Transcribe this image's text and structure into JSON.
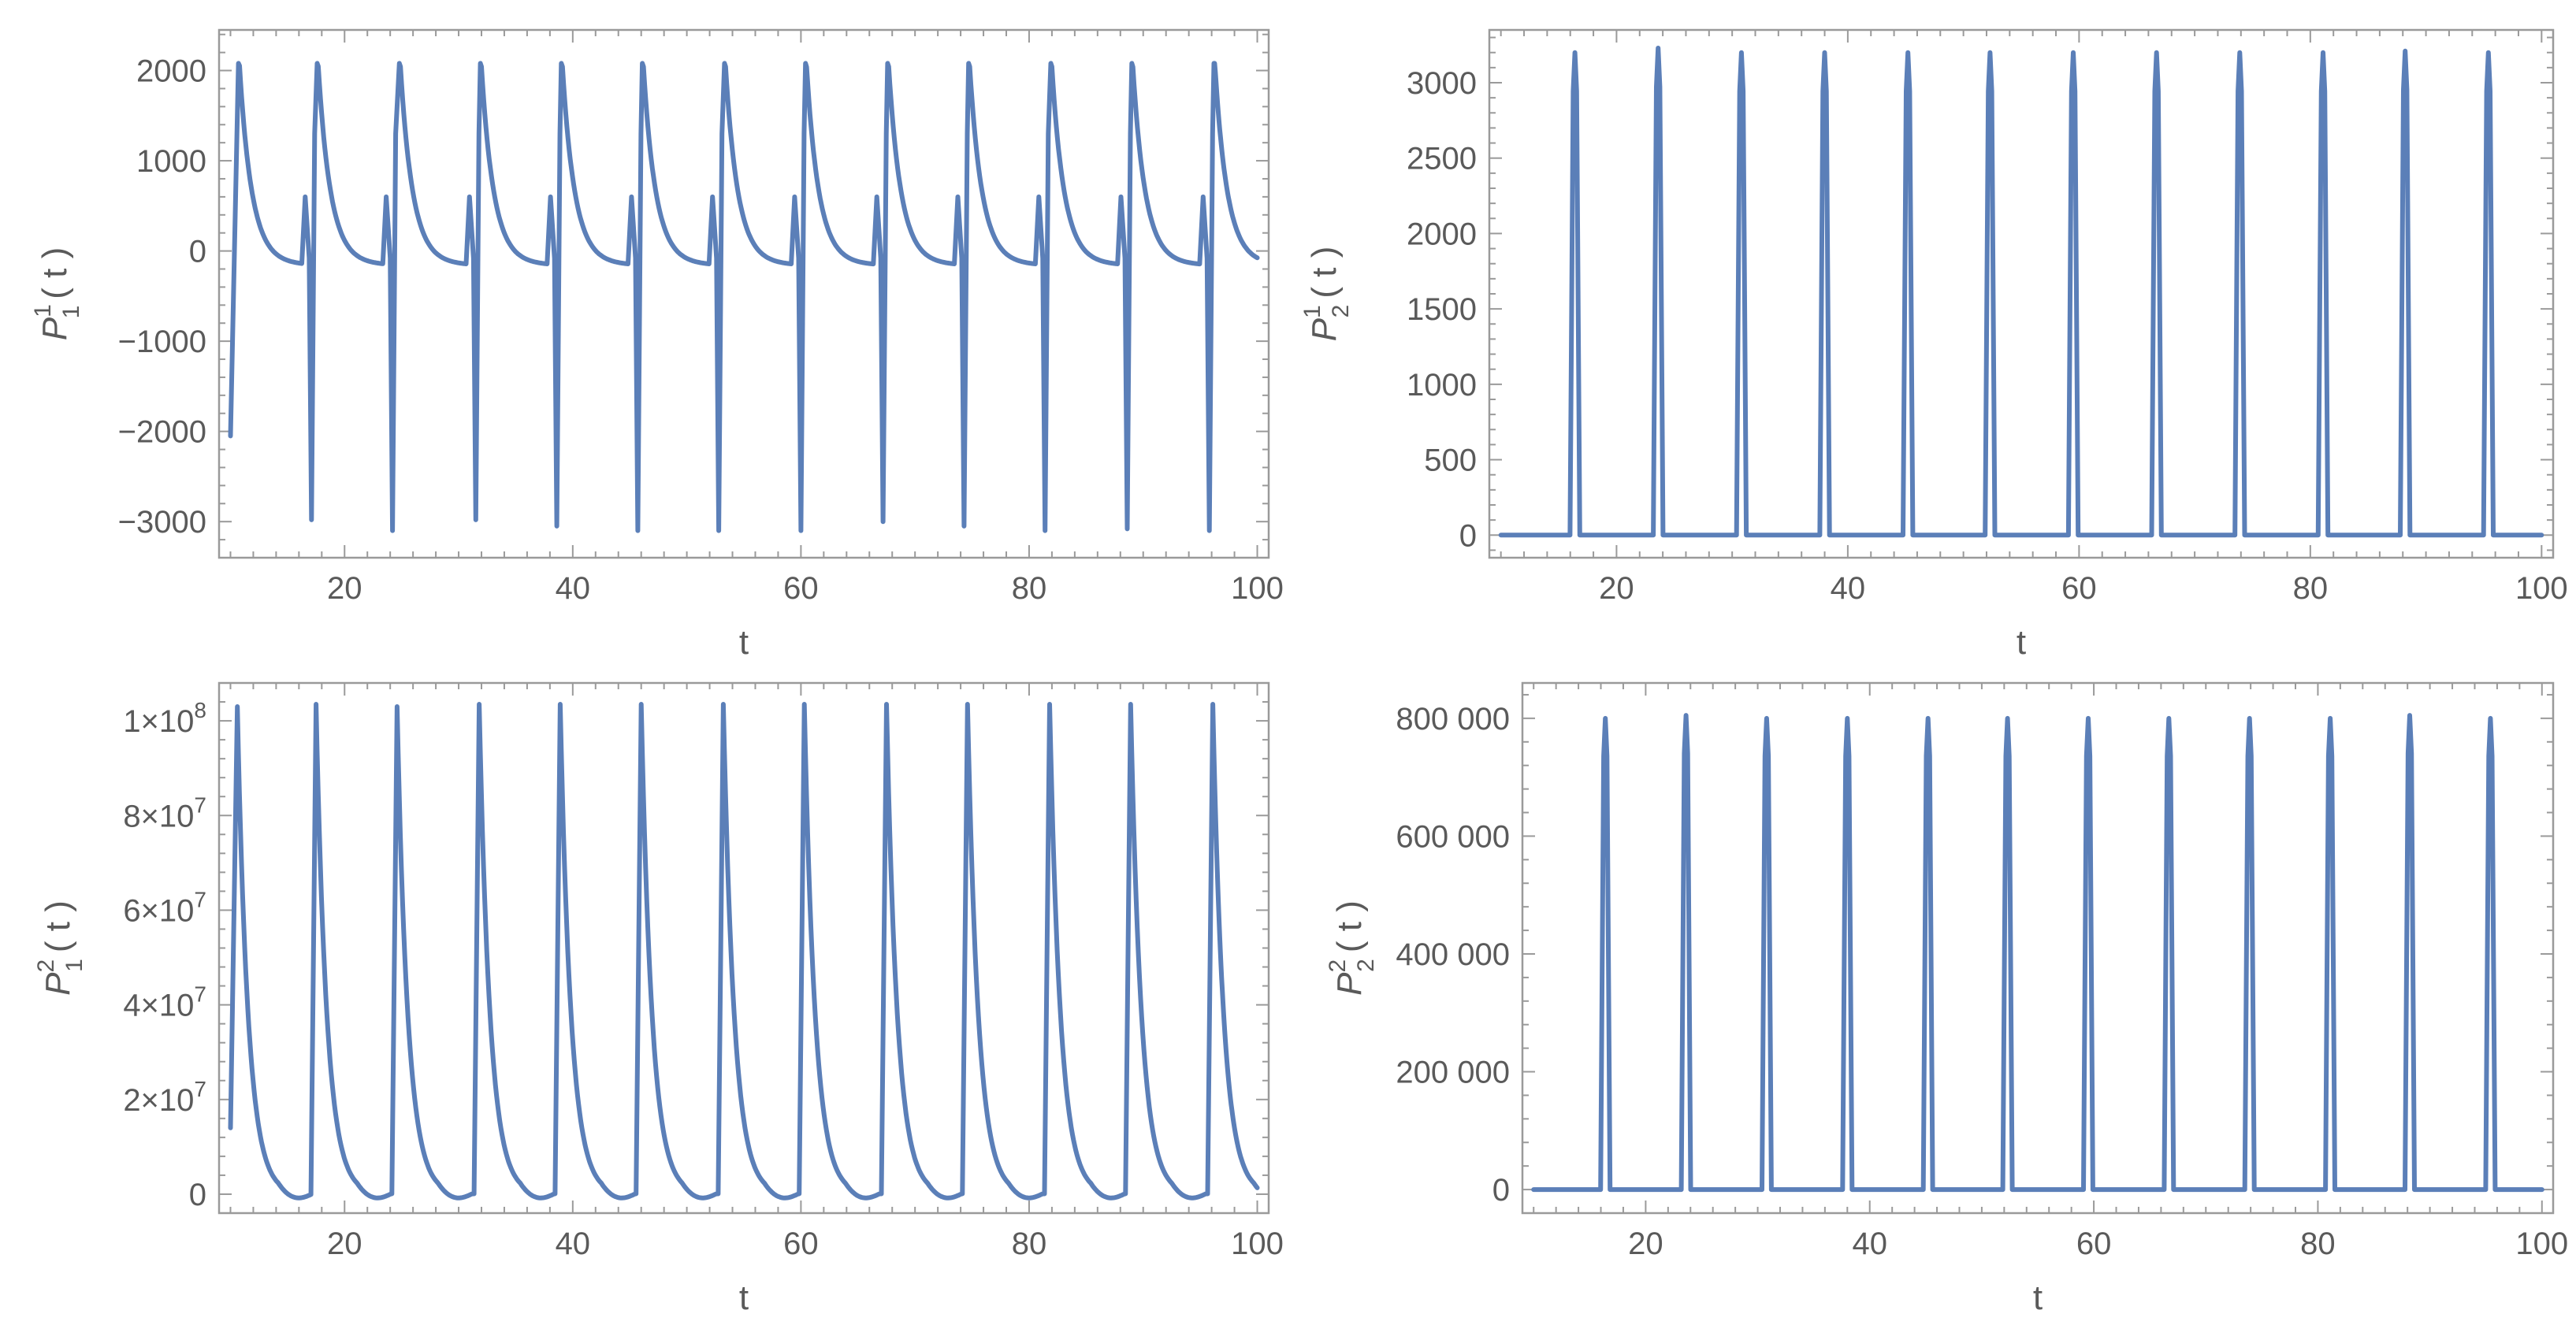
{
  "chart_data": [
    {
      "id": "p1_1",
      "type": "line",
      "xlabel": "t",
      "ylabel": {
        "base": "P",
        "sup": "1",
        "sub": "1",
        "arg": "( t )"
      },
      "xlim": [
        9,
        101
      ],
      "ylim": [
        -3400,
        2450
      ],
      "xticks": [
        20,
        40,
        60,
        80,
        100
      ],
      "xtick_labels": [
        "20",
        "40",
        "60",
        "80",
        "100"
      ],
      "yticks": [
        -3000,
        -2000,
        -1000,
        0,
        1000,
        2000
      ],
      "ytick_labels": [
        "−3000",
        "−2000",
        "−1000",
        "0",
        "1000",
        "2000"
      ],
      "series": [
        {
          "color": "#5b7fb8",
          "pattern": "ode_p1_1",
          "first_t": 10.0,
          "last_t": 100.0,
          "peaks": [
            {
              "t": 10.7,
              "v": 2080
            },
            {
              "t": 17.6,
              "v": 2080
            },
            {
              "t": 24.8,
              "v": 2080
            },
            {
              "t": 31.9,
              "v": 2080
            },
            {
              "t": 39.0,
              "v": 2080
            },
            {
              "t": 46.1,
              "v": 2080
            },
            {
              "t": 53.3,
              "v": 2080
            },
            {
              "t": 60.4,
              "v": 2080
            },
            {
              "t": 67.6,
              "v": 2080
            },
            {
              "t": 74.7,
              "v": 2080
            },
            {
              "t": 81.9,
              "v": 2080
            },
            {
              "t": 89.0,
              "v": 2080
            },
            {
              "t": 96.2,
              "v": 2080
            }
          ],
          "spikes": [
            {
              "t": 17.1,
              "min": -2980,
              "pre": 600
            },
            {
              "t": 24.2,
              "min": -3100,
              "pre": 600
            },
            {
              "t": 31.5,
              "min": -2980,
              "pre": 600
            },
            {
              "t": 38.6,
              "min": -3050,
              "pre": 600
            },
            {
              "t": 45.7,
              "min": -3100,
              "pre": 600
            },
            {
              "t": 52.8,
              "min": -3100,
              "pre": 600
            },
            {
              "t": 60.0,
              "min": -3100,
              "pre": 600
            },
            {
              "t": 67.2,
              "min": -3000,
              "pre": 600
            },
            {
              "t": 74.3,
              "min": -3050,
              "pre": 600
            },
            {
              "t": 81.4,
              "min": -3100,
              "pre": 600
            },
            {
              "t": 88.6,
              "min": -3080,
              "pre": 600
            },
            {
              "t": 95.8,
              "min": -3100,
              "pre": 600
            }
          ],
          "start_value": -2050
        }
      ]
    },
    {
      "id": "p1_2",
      "type": "line",
      "xlabel": "t",
      "ylabel": {
        "base": "P",
        "sup": "1",
        "sub": "2",
        "arg": "( t )"
      },
      "xlim": [
        9,
        101
      ],
      "ylim": [
        -150,
        3350
      ],
      "xticks": [
        20,
        40,
        60,
        80,
        100
      ],
      "xtick_labels": [
        "20",
        "40",
        "60",
        "80",
        "100"
      ],
      "yticks": [
        0,
        500,
        1000,
        1500,
        2000,
        2500,
        3000
      ],
      "ytick_labels": [
        "0",
        "500",
        "1000",
        "1500",
        "2000",
        "2500",
        "3000"
      ],
      "series": [
        {
          "color": "#5b7fb8",
          "pattern": "pulses",
          "first_t": 10.0,
          "last_t": 100.0,
          "width": 0.6,
          "pulses": [
            {
              "t": 16.4,
              "v": 3200
            },
            {
              "t": 23.6,
              "v": 3230
            },
            {
              "t": 30.8,
              "v": 3200
            },
            {
              "t": 38.0,
              "v": 3200
            },
            {
              "t": 45.2,
              "v": 3200
            },
            {
              "t": 52.3,
              "v": 3200
            },
            {
              "t": 59.5,
              "v": 3200
            },
            {
              "t": 66.7,
              "v": 3200
            },
            {
              "t": 73.9,
              "v": 3200
            },
            {
              "t": 81.1,
              "v": 3200
            },
            {
              "t": 88.2,
              "v": 3210
            },
            {
              "t": 95.4,
              "v": 3200
            }
          ]
        }
      ]
    },
    {
      "id": "p2_1",
      "type": "line",
      "xlabel": "t",
      "ylabel": {
        "base": "P",
        "sup": "2",
        "sub": "1",
        "arg": "( t )"
      },
      "xlim": [
        9,
        101
      ],
      "ylim": [
        -4000000,
        108000000
      ],
      "xticks": [
        20,
        40,
        60,
        80,
        100
      ],
      "xtick_labels": [
        "20",
        "40",
        "60",
        "80",
        "100"
      ],
      "yticks": [
        0,
        20000000,
        40000000,
        60000000,
        80000000,
        100000000
      ],
      "ytick_labels": [
        {
          "mant": "0",
          "exp": ""
        },
        {
          "mant": "2×10",
          "exp": "7"
        },
        {
          "mant": "4×10",
          "exp": "7"
        },
        {
          "mant": "6×10",
          "exp": "7"
        },
        {
          "mant": "8×10",
          "exp": "7"
        },
        {
          "mant": "1×10",
          "exp": "8"
        }
      ],
      "series": [
        {
          "color": "#5b7fb8",
          "pattern": "decay_pulses",
          "first_t": 10.0,
          "last_t": 100.0,
          "start_value": 14000000,
          "peaks": [
            {
              "t": 10.6,
              "v": 103000000
            },
            {
              "t": 17.5,
              "v": 103500000
            },
            {
              "t": 24.6,
              "v": 103000000
            },
            {
              "t": 31.8,
              "v": 103500000
            },
            {
              "t": 38.9,
              "v": 103500000
            },
            {
              "t": 46.0,
              "v": 103500000
            },
            {
              "t": 53.2,
              "v": 103500000
            },
            {
              "t": 60.3,
              "v": 103500000
            },
            {
              "t": 67.5,
              "v": 103500000
            },
            {
              "t": 74.6,
              "v": 103500000
            },
            {
              "t": 81.8,
              "v": 103500000
            },
            {
              "t": 88.9,
              "v": 103500000
            },
            {
              "t": 96.1,
              "v": 103500000
            }
          ]
        }
      ]
    },
    {
      "id": "p2_2",
      "type": "line",
      "xlabel": "t",
      "ylabel": {
        "base": "P",
        "sup": "2",
        "sub": "2",
        "arg": "( t )"
      },
      "xlim": [
        9,
        101
      ],
      "ylim": [
        -40000,
        860000
      ],
      "xticks": [
        20,
        40,
        60,
        80,
        100
      ],
      "xtick_labels": [
        "20",
        "40",
        "60",
        "80",
        "100"
      ],
      "yticks": [
        0,
        200000,
        400000,
        600000,
        800000
      ],
      "ytick_labels": [
        "0",
        "200 000",
        "400 000",
        "600 000",
        "800 000"
      ],
      "series": [
        {
          "color": "#5b7fb8",
          "pattern": "pulses",
          "first_t": 10.0,
          "last_t": 100.0,
          "width": 0.6,
          "pulses": [
            {
              "t": 16.4,
              "v": 800000
            },
            {
              "t": 23.6,
              "v": 805000
            },
            {
              "t": 30.8,
              "v": 800000
            },
            {
              "t": 38.0,
              "v": 800000
            },
            {
              "t": 45.2,
              "v": 800000
            },
            {
              "t": 52.3,
              "v": 800000
            },
            {
              "t": 59.5,
              "v": 800000
            },
            {
              "t": 66.7,
              "v": 800000
            },
            {
              "t": 73.9,
              "v": 800000
            },
            {
              "t": 81.1,
              "v": 800000
            },
            {
              "t": 88.2,
              "v": 805000
            },
            {
              "t": 95.4,
              "v": 800000
            }
          ]
        }
      ]
    }
  ]
}
